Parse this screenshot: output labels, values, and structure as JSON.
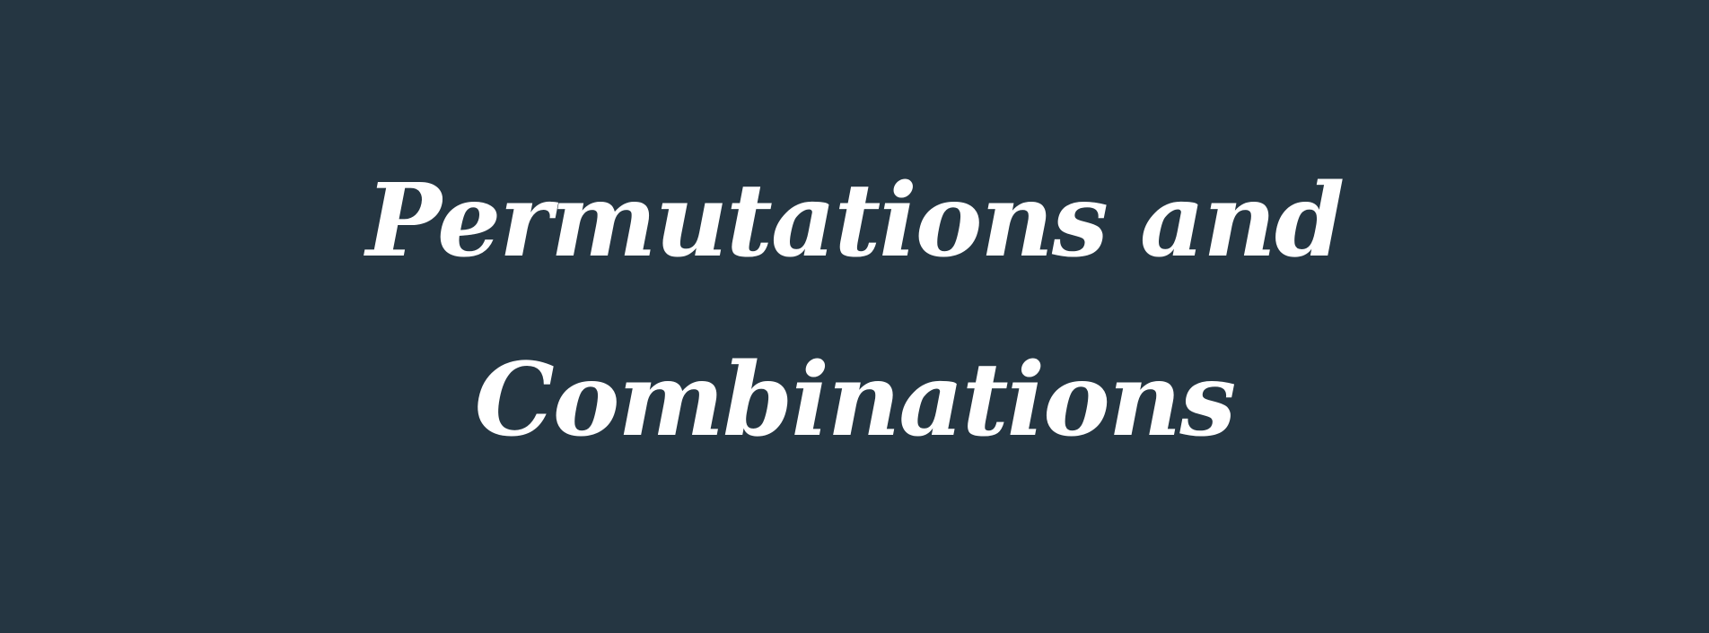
{
  "banner": {
    "background_color": "#253642",
    "text_color": "#ffffff",
    "title_lines": [
      "Permutations and",
      "Combinations"
    ]
  }
}
